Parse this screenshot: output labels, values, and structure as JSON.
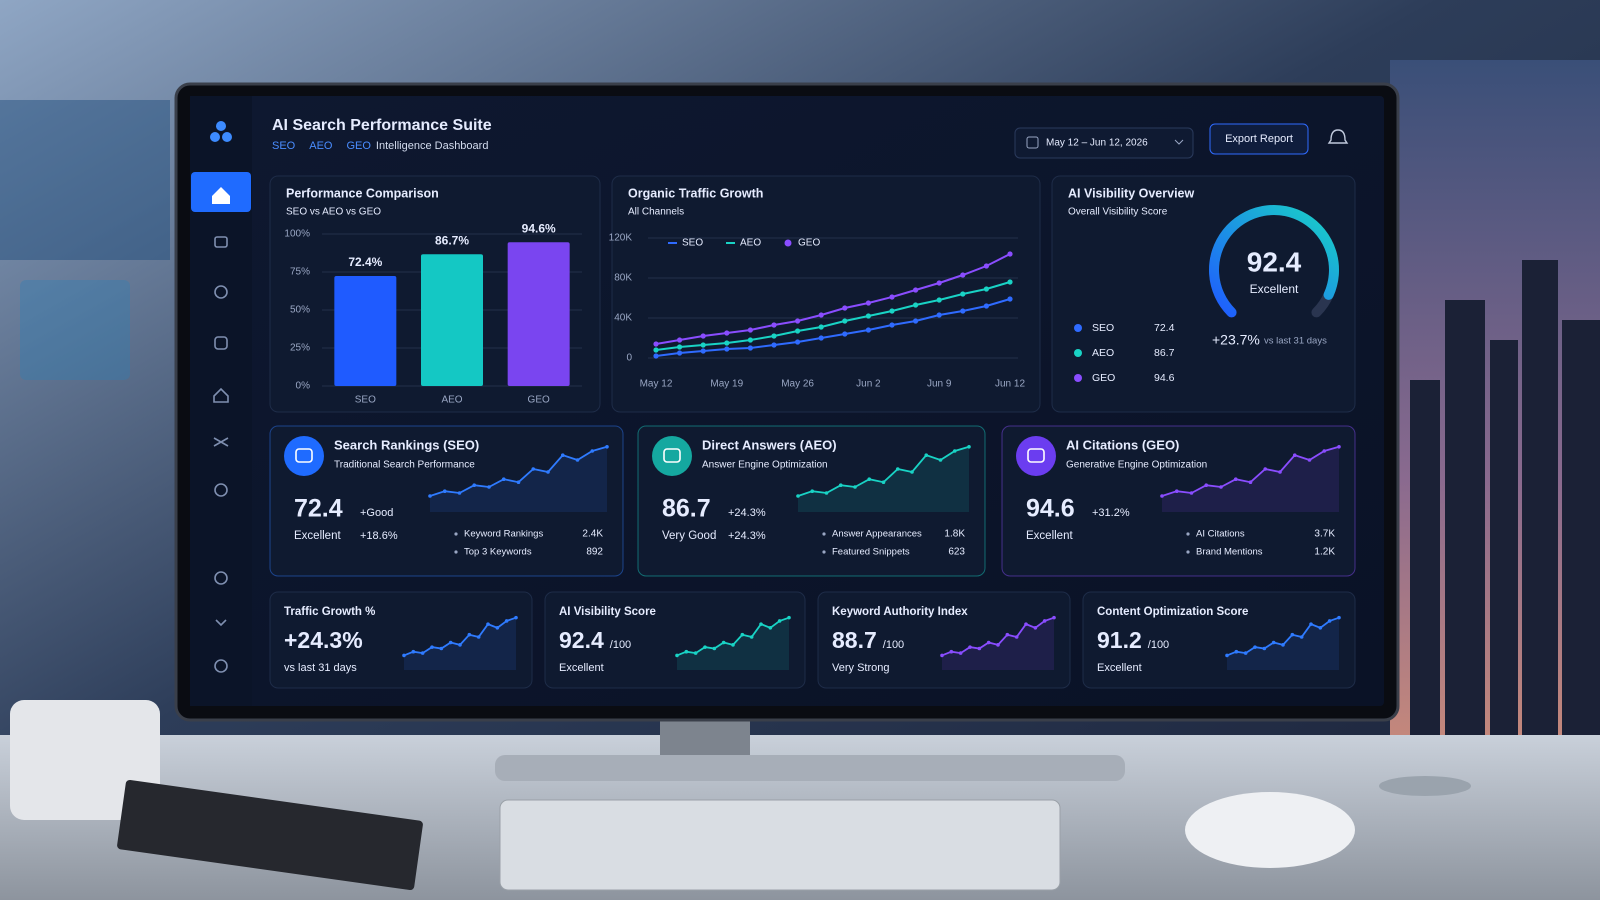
{
  "header": {
    "title": "AI Search Performance Suite",
    "tags": [
      "SEO",
      "AEO",
      "GEO"
    ],
    "subtitle": "Intelligence Dashboard",
    "date_range": "May 12 – Jun 12, 2026",
    "export": "Export Report"
  },
  "chart_data": [
    {
      "type": "bar",
      "title": "Performance Comparison",
      "subtitle": "SEO vs AEO vs GEO",
      "categories": [
        "SEO",
        "AEO",
        "GEO"
      ],
      "values": [
        72.4,
        86.7,
        94.6
      ],
      "value_labels": [
        "72.4%",
        "86.7%",
        "94.6%"
      ],
      "colors": [
        "#1f5bff",
        "#14c8c4",
        "#7a45f0"
      ],
      "ylim": [
        0,
        100
      ],
      "yticks": [
        {
          "value": 0,
          "label": "0%"
        },
        {
          "value": 25,
          "label": "25%"
        },
        {
          "value": 50,
          "label": "50%"
        },
        {
          "value": 75,
          "label": "75%"
        },
        {
          "value": 100,
          "label": "100%"
        }
      ]
    },
    {
      "type": "line",
      "title": "Organic Traffic Growth",
      "subtitle": "All Channels",
      "categories": [
        "May 12",
        null,
        null,
        "May 19",
        null,
        null,
        "May 26",
        null,
        null,
        "Jun 2",
        null,
        null,
        "Jun 9",
        null,
        null,
        "Jun 12"
      ],
      "series": [
        {
          "name": "SEO",
          "color": "#2f6bff",
          "values": [
            2000,
            5000,
            7000,
            9000,
            10000,
            13000,
            16000,
            20000,
            24000,
            28000,
            33000,
            37000,
            43000,
            47000,
            52000,
            59000
          ]
        },
        {
          "name": "AEO",
          "color": "#19d3c5",
          "values": [
            8000,
            11000,
            13000,
            15000,
            18000,
            22000,
            27000,
            31000,
            37000,
            42000,
            47000,
            53000,
            58000,
            64000,
            69000,
            76000
          ]
        },
        {
          "name": "GEO",
          "color": "#8a4dff",
          "values": [
            14000,
            18000,
            22000,
            25000,
            28000,
            33000,
            37000,
            43000,
            50000,
            55000,
            61000,
            68000,
            75000,
            83000,
            92000,
            104000
          ]
        }
      ],
      "ylim": [
        0,
        120000
      ],
      "yticks": [
        0,
        {
          "value": 40000,
          "label": "40K"
        },
        {
          "value": 80000,
          "label": "80K"
        },
        {
          "value": 120000,
          "label": "120K"
        }
      ]
    },
    {
      "type": "gauge",
      "title": "AI Visibility Overview",
      "subtitle": "Overall Visibility Score",
      "value": 92.4,
      "ylim": [
        0,
        100
      ],
      "rating": "Excellent",
      "categories": [
        "SEO",
        "AEO",
        "GEO"
      ],
      "values": [
        72.4,
        86.7,
        94.6
      ],
      "colors": [
        "#2f6bff",
        "#19d3c5",
        "#8a4dff"
      ],
      "change": "+23.7%",
      "change_note": "vs last 31 days"
    }
  ],
  "cards": [
    {
      "title": "Search Rankings (SEO)",
      "subtitle": "Traditional Search Performance",
      "score": "72.4",
      "badge": "+Good",
      "rating": "Excellent",
      "change": "+18.6%",
      "metrics": [
        {
          "label": "Keyword Rankings",
          "value": "2.4K"
        },
        {
          "label": "Top 3 Keywords",
          "value": "892"
        }
      ]
    },
    {
      "title": "Direct Answers (AEO)",
      "subtitle": "Answer Engine Optimization",
      "score": "86.7",
      "badge": "+24.3%",
      "rating": "Very Good",
      "change": "+24.3%",
      "metrics": [
        {
          "label": "Answer Appearances",
          "value": "1.8K"
        },
        {
          "label": "Featured Snippets",
          "value": "623"
        }
      ]
    },
    {
      "title": "AI Citations (GEO)",
      "subtitle": "Generative Engine Optimization",
      "score": "94.6",
      "badge": "+31.2%",
      "rating": "Excellent",
      "metrics": [
        {
          "label": "AI Citations",
          "value": "3.7K"
        },
        {
          "label": "Brand Mentions",
          "value": "1.2K"
        }
      ]
    }
  ],
  "kpis": [
    {
      "title": "Traffic Growth %",
      "value": "+24.3%",
      "note": "vs last 31 days"
    },
    {
      "title": "AI Visibility Score",
      "value": "92.4",
      "unit": "/100",
      "note": "Excellent"
    },
    {
      "title": "Keyword Authority Index",
      "value": "88.7",
      "unit": "/100",
      "note": "Very Strong"
    },
    {
      "title": "Content Optimization Score",
      "value": "91.2",
      "unit": "/100",
      "note": "Excellent"
    }
  ]
}
